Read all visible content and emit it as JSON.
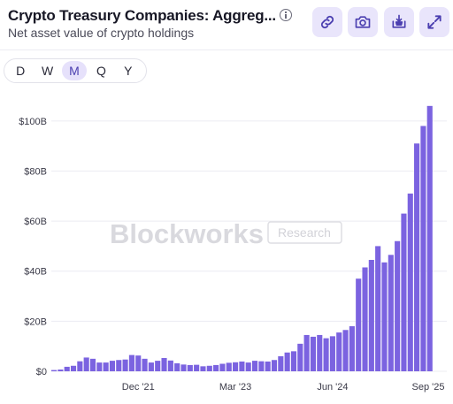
{
  "header": {
    "title": "Crypto Treasury Companies: Aggreg...",
    "subtitle": "Net asset value of crypto holdings"
  },
  "toolbar": {
    "buttons": [
      {
        "name": "link-button",
        "icon": "link-icon"
      },
      {
        "name": "screenshot-button",
        "icon": "camera-icon"
      },
      {
        "name": "download-button",
        "icon": "download-icon"
      },
      {
        "name": "expand-button",
        "icon": "expand-icon"
      }
    ]
  },
  "periods": {
    "options": [
      "D",
      "W",
      "M",
      "Q",
      "Y"
    ],
    "selected": "M"
  },
  "watermark": {
    "brand": "Blockworks",
    "badge": "Research"
  },
  "colors": {
    "bar": "#7b63e0",
    "accent": "#e9e5fb"
  },
  "chart_data": {
    "type": "bar",
    "y_unit": "USD",
    "ylim": [
      0,
      107
    ],
    "y_ticks": [
      {
        "value": 0,
        "label": "$0"
      },
      {
        "value": 20,
        "label": "$20B"
      },
      {
        "value": 40,
        "label": "$40B"
      },
      {
        "value": 60,
        "label": "$60B"
      },
      {
        "value": 80,
        "label": "$80B"
      },
      {
        "value": 100,
        "label": "$100B"
      }
    ],
    "x_tick_labels": [
      {
        "index": 13,
        "label": "Dec '21"
      },
      {
        "index": 28,
        "label": "Mar '23"
      },
      {
        "index": 43,
        "label": "Jun '24"
      },
      {
        "index": 58,
        "label": "Sep '25"
      }
    ],
    "values": [
      0.5,
      0.7,
      1.8,
      2.2,
      4.0,
      5.5,
      5.0,
      3.5,
      3.5,
      4.2,
      4.5,
      4.7,
      6.5,
      6.3,
      5.0,
      3.5,
      4.2,
      5.3,
      4.3,
      3.2,
      2.7,
      2.5,
      2.6,
      2.0,
      2.2,
      2.5,
      3.0,
      3.4,
      3.6,
      3.9,
      3.5,
      4.2,
      4.0,
      3.9,
      4.5,
      6.0,
      7.5,
      8.0,
      11.0,
      14.5,
      13.8,
      14.5,
      13.2,
      14.0,
      15.5,
      16.5,
      18.0,
      37.0,
      41.5,
      44.5,
      50.0,
      43.5,
      46.5,
      52.0,
      63.0,
      71.0,
      91.0,
      98.0,
      106.0
    ],
    "grid": true,
    "legend": "none"
  }
}
